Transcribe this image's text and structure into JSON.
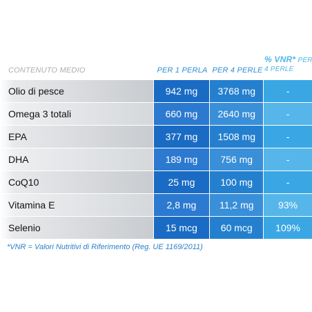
{
  "header": {
    "label": "CONTENUTO MEDIO",
    "col1": "PER 1 PERLA",
    "col2": "PER 4 PERLE",
    "col3_title": "% VNR*",
    "col3_sub": "PER 4 PERLE"
  },
  "rows": [
    {
      "name": "Olio di pesce",
      "per1": "942 mg",
      "per4": "3768 mg",
      "vnr": "-"
    },
    {
      "name": "Omega 3 totali",
      "per1": "660 mg",
      "per4": "2640 mg",
      "vnr": "-"
    },
    {
      "name": "EPA",
      "per1": "377 mg",
      "per4": "1508 mg",
      "vnr": "-"
    },
    {
      "name": "DHA",
      "per1": "189 mg",
      "per4": "756 mg",
      "vnr": "-"
    },
    {
      "name": "CoQ10",
      "per1": "25 mg",
      "per4": "100 mg",
      "vnr": "-"
    },
    {
      "name": "Vitamina E",
      "per1": "2,8 mg",
      "per4": "11,2 mg",
      "vnr": "93%"
    },
    {
      "name": "Selenio",
      "per1": "15 mcg",
      "per4": "60 mcg",
      "vnr": "109%"
    }
  ],
  "footnote": "*VNR = Valori Nutritivi di Riferimento (Reg. UE 1169/2011)"
}
